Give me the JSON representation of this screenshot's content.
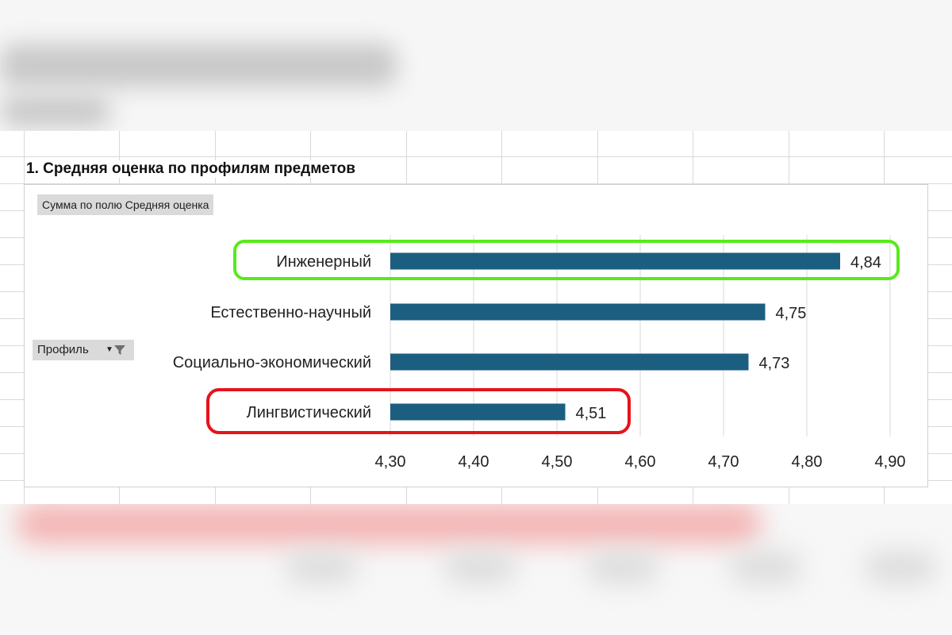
{
  "chart_data": {
    "type": "bar",
    "orientation": "horizontal",
    "title": "1. Средняя оценка по профилям предметов",
    "value_field_label": "Сумма по полю Средняя оценка",
    "category_field_label": "Профиль",
    "categories": [
      "Инженерный",
      "Естественно-научный",
      "Социально-экономический",
      "Лингвистический"
    ],
    "values": [
      4.84,
      4.75,
      4.73,
      4.51
    ],
    "value_labels": [
      "4,84",
      "4,75",
      "4,73",
      "4,51"
    ],
    "xlim": [
      4.3,
      4.9
    ],
    "x_ticks": [
      4.3,
      4.4,
      4.5,
      4.6,
      4.7,
      4.8,
      4.9
    ],
    "x_tick_labels": [
      "4,30",
      "4,40",
      "4,50",
      "4,60",
      "4,70",
      "4,80",
      "4,90"
    ],
    "bar_color": "#1b5e80",
    "grid": "vertical",
    "highlights": [
      {
        "category": "Инженерный",
        "color": "#57ea1b"
      },
      {
        "category": "Лингвистический",
        "color": "#e8121b"
      }
    ]
  }
}
